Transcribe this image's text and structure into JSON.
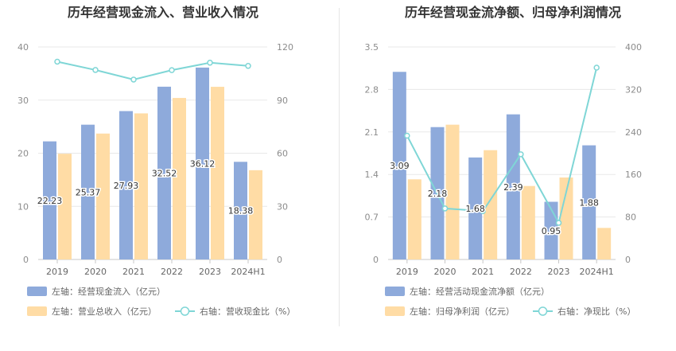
{
  "colors": {
    "bar1": "#8eaadb",
    "bar2": "#ffdca5",
    "line": "#7fd6d6",
    "grid": "#e8e8e8",
    "axis": "#c8c8c8"
  },
  "chart_data": [
    {
      "type": "bar",
      "title": "历年经营现金流入、营业收入情况",
      "categories": [
        "2019",
        "2020",
        "2021",
        "2022",
        "2023",
        "2024H1"
      ],
      "y_left": {
        "ticks": [
          "0",
          "10",
          "20",
          "30",
          "40"
        ],
        "ylim": [
          0,
          40
        ]
      },
      "y_right": {
        "ticks": [
          "0",
          "30",
          "60",
          "90",
          "120"
        ],
        "ylim": [
          0,
          120
        ]
      },
      "series": [
        {
          "name": "左轴：经营现金流入（亿元）",
          "type": "bar",
          "axis": "left",
          "values": [
            22.23,
            25.37,
            27.93,
            32.52,
            36.12,
            18.38
          ],
          "labels": [
            "22.23",
            "25.37",
            "27.93",
            "32.52",
            "36.12",
            "18.38"
          ]
        },
        {
          "name": "左轴：营业总收入（亿元）",
          "type": "bar",
          "axis": "left",
          "values": [
            19.9,
            23.7,
            27.5,
            30.4,
            32.5,
            16.8
          ]
        },
        {
          "name": "右轴：营收现金比（%）",
          "type": "line",
          "axis": "right",
          "values": [
            111.7,
            107.0,
            101.6,
            106.9,
            111.1,
            109.3
          ]
        }
      ],
      "legend_position": "bottom-left",
      "grid": true
    },
    {
      "type": "bar",
      "title": "历年经营现金流净额、归母净利润情况",
      "categories": [
        "2019",
        "2020",
        "2021",
        "2022",
        "2023",
        "2024H1"
      ],
      "y_left": {
        "ticks": [
          "0",
          "0.7",
          "1.4",
          "2.1",
          "2.8",
          "3.5"
        ],
        "ylim": [
          0,
          3.5
        ]
      },
      "y_right": {
        "ticks": [
          "0",
          "80",
          "160",
          "240",
          "320",
          "400"
        ],
        "ylim": [
          0,
          400
        ]
      },
      "series": [
        {
          "name": "左轴：经营活动现金流净额（亿元）",
          "type": "bar",
          "axis": "left",
          "values": [
            3.09,
            2.18,
            1.68,
            2.39,
            0.95,
            1.88
          ],
          "labels": [
            "3.09",
            "2.18",
            "1.68",
            "2.39",
            "0.95",
            "1.88"
          ]
        },
        {
          "name": "左轴：归母净利润（亿元）",
          "type": "bar",
          "axis": "left",
          "values": [
            1.32,
            2.22,
            1.8,
            1.21,
            1.35,
            0.52
          ]
        },
        {
          "name": "右轴：净现比（%）",
          "type": "line",
          "axis": "right",
          "values": [
            233,
            96,
            91,
            198,
            69,
            361
          ]
        }
      ],
      "legend_position": "bottom-left",
      "grid": true
    }
  ]
}
